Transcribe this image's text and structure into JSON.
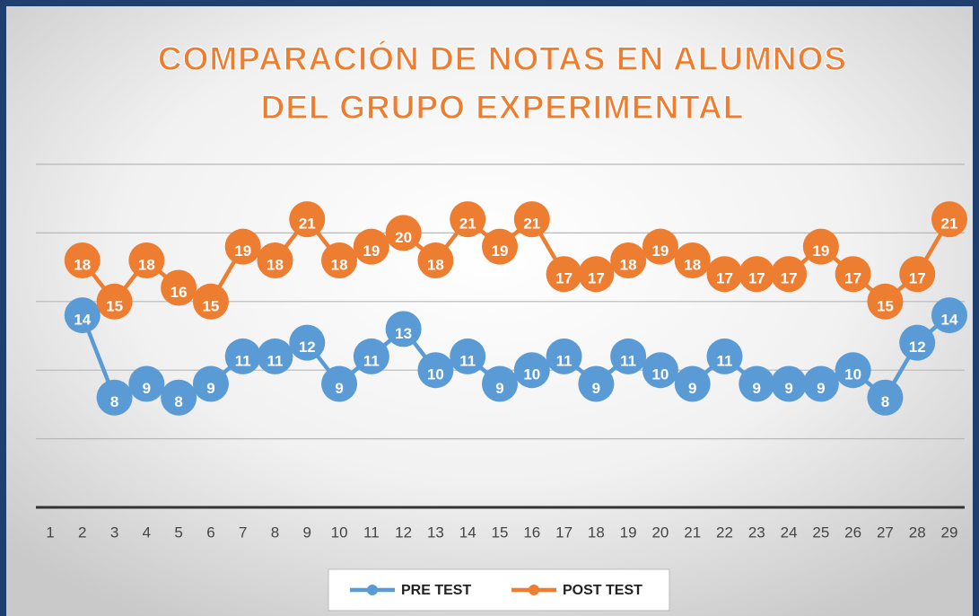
{
  "chart_data": {
    "type": "line",
    "title": [
      "COMPARACIÓN DE NOTAS EN ALUMNOS",
      "DEL GRUPO EXPERIMENTAL"
    ],
    "categories": [
      "1",
      "2",
      "3",
      "4",
      "5",
      "6",
      "7",
      "8",
      "9",
      "10",
      "11",
      "12",
      "13",
      "14",
      "15",
      "16",
      "17",
      "18",
      "19",
      "20",
      "21",
      "22",
      "23",
      "24",
      "25",
      "26",
      "27",
      "28",
      "29"
    ],
    "series": [
      {
        "name": "PRE TEST",
        "color": "#5b9bd5",
        "values": [
          null,
          14,
          8,
          9,
          8,
          9,
          11,
          11,
          12,
          9,
          11,
          13,
          10,
          11,
          9,
          10,
          11,
          9,
          11,
          10,
          9,
          11,
          9,
          9,
          9,
          10,
          8,
          12,
          14
        ]
      },
      {
        "name": "POST TEST",
        "color": "#ed7d31",
        "values": [
          null,
          18,
          15,
          18,
          16,
          15,
          19,
          18,
          21,
          18,
          19,
          20,
          18,
          21,
          19,
          21,
          17,
          17,
          18,
          19,
          18,
          17,
          17,
          17,
          19,
          17,
          15,
          17,
          21
        ]
      }
    ],
    "ylim": [
      0,
      25
    ],
    "yticks": [
      0,
      5,
      10,
      15,
      20,
      25
    ],
    "grid": true,
    "legend": "bottom"
  }
}
